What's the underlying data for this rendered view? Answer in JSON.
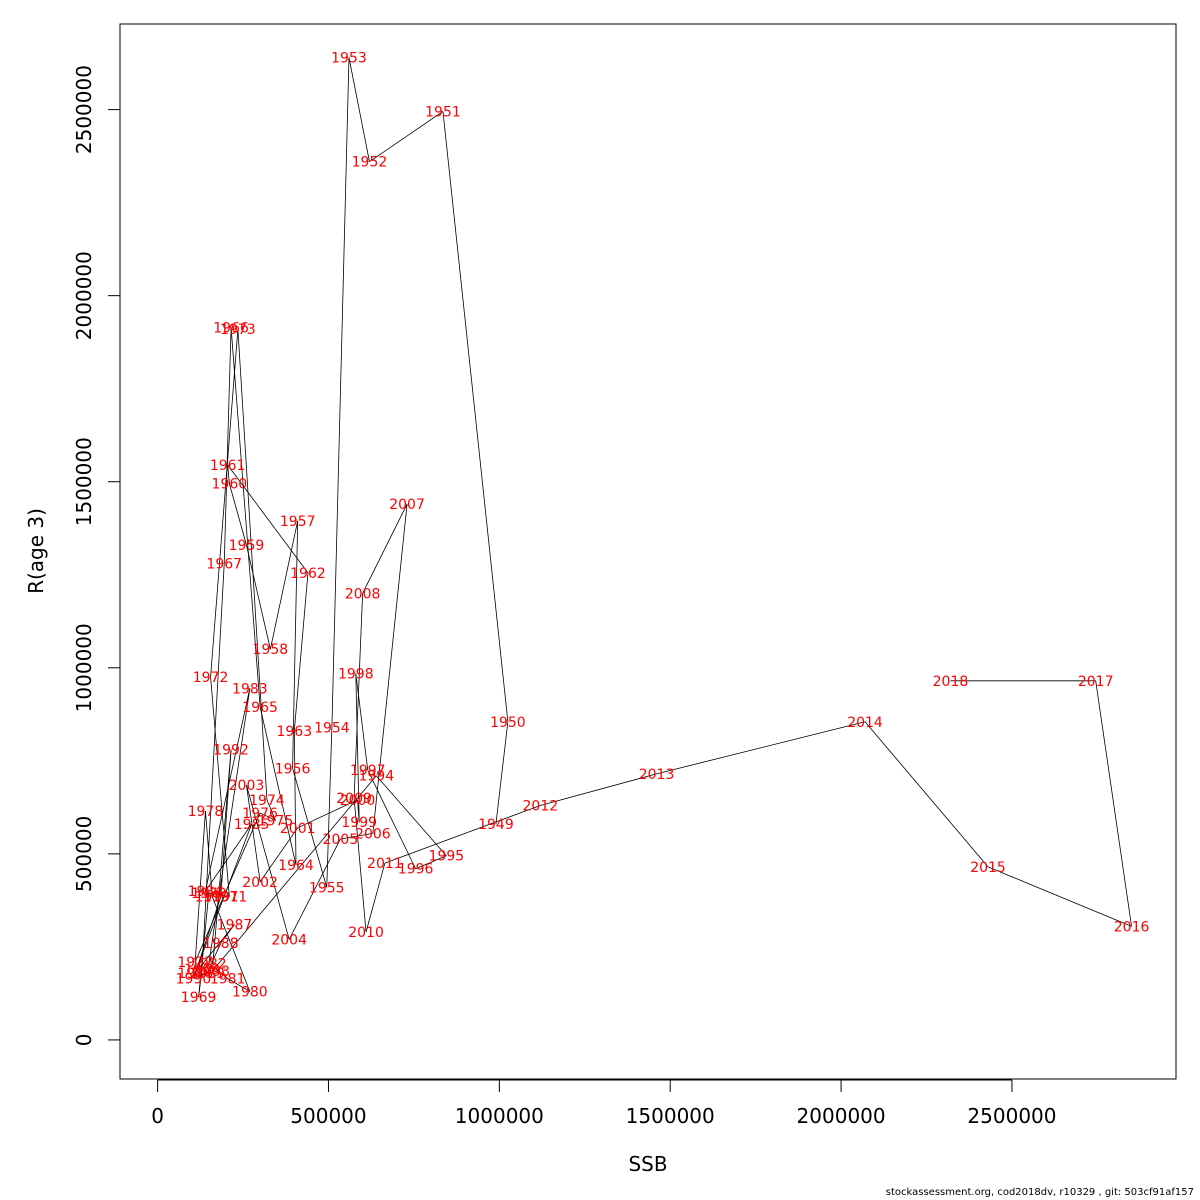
{
  "footer": "stockassessment.org, cod2018dv, r10329 , git: 503cf91af157",
  "chart_data": {
    "type": "line",
    "title": "",
    "xlabel": "SSB",
    "ylabel": "R(age 3)",
    "xlim": [
      -110000,
      2980000
    ],
    "ylim": [
      -105000,
      2730000
    ],
    "x_ticks": [
      0,
      500000,
      1000000,
      1500000,
      2000000,
      2500000
    ],
    "y_ticks": [
      0,
      500000,
      1000000,
      1500000,
      2000000,
      2500000
    ],
    "grid": false,
    "line_color": "#000000",
    "label_color": "#ff0000",
    "points": [
      {
        "year": "1949",
        "x": 990000,
        "y": 580000
      },
      {
        "year": "1950",
        "x": 1025000,
        "y": 855000
      },
      {
        "year": "1951",
        "x": 835000,
        "y": 2495000
      },
      {
        "year": "1952",
        "x": 620000,
        "y": 2360000
      },
      {
        "year": "1953",
        "x": 560000,
        "y": 2640000
      },
      {
        "year": "1954",
        "x": 510000,
        "y": 840000
      },
      {
        "year": "1955",
        "x": 495000,
        "y": 410000
      },
      {
        "year": "1956",
        "x": 395000,
        "y": 730000
      },
      {
        "year": "1957",
        "x": 410000,
        "y": 1395000
      },
      {
        "year": "1958",
        "x": 330000,
        "y": 1050000
      },
      {
        "year": "1959",
        "x": 260000,
        "y": 1330000
      },
      {
        "year": "1960",
        "x": 210000,
        "y": 1495000
      },
      {
        "year": "1961",
        "x": 205000,
        "y": 1545000
      },
      {
        "year": "1962",
        "x": 440000,
        "y": 1255000
      },
      {
        "year": "1963",
        "x": 400000,
        "y": 830000
      },
      {
        "year": "1964",
        "x": 405000,
        "y": 470000
      },
      {
        "year": "1965",
        "x": 300000,
        "y": 895000
      },
      {
        "year": "1966",
        "x": 215000,
        "y": 1915000
      },
      {
        "year": "1967",
        "x": 195000,
        "y": 1280000
      },
      {
        "year": "1968",
        "x": 130000,
        "y": 190000
      },
      {
        "year": "1969",
        "x": 120000,
        "y": 115000
      },
      {
        "year": "1970",
        "x": 150000,
        "y": 395000
      },
      {
        "year": "1971",
        "x": 210000,
        "y": 385000
      },
      {
        "year": "1972",
        "x": 155000,
        "y": 975000
      },
      {
        "year": "1973",
        "x": 235000,
        "y": 1910000
      },
      {
        "year": "1974",
        "x": 320000,
        "y": 645000
      },
      {
        "year": "1975",
        "x": 345000,
        "y": 590000
      },
      {
        "year": "1976",
        "x": 300000,
        "y": 610000
      },
      {
        "year": "1977",
        "x": 110000,
        "y": 210000
      },
      {
        "year": "1978",
        "x": 140000,
        "y": 615000
      },
      {
        "year": "1979",
        "x": 160000,
        "y": 385000
      },
      {
        "year": "1980",
        "x": 270000,
        "y": 130000
      },
      {
        "year": "1981",
        "x": 205000,
        "y": 165000
      },
      {
        "year": "1982",
        "x": 150000,
        "y": 205000
      },
      {
        "year": "1983",
        "x": 270000,
        "y": 945000
      },
      {
        "year": "1984",
        "x": 140000,
        "y": 400000
      },
      {
        "year": "1985",
        "x": 275000,
        "y": 580000
      },
      {
        "year": "1986",
        "x": 110000,
        "y": 180000
      },
      {
        "year": "1987",
        "x": 225000,
        "y": 310000
      },
      {
        "year": "1988",
        "x": 185000,
        "y": 260000
      },
      {
        "year": "1989",
        "x": 145000,
        "y": 180000
      },
      {
        "year": "1990",
        "x": 105000,
        "y": 165000
      },
      {
        "year": "1991",
        "x": 185000,
        "y": 385000
      },
      {
        "year": "1992",
        "x": 215000,
        "y": 780000
      },
      {
        "year": "1993",
        "x": 160000,
        "y": 185000
      },
      {
        "year": "1994",
        "x": 640000,
        "y": 710000
      },
      {
        "year": "1995",
        "x": 845000,
        "y": 495000
      },
      {
        "year": "1996",
        "x": 755000,
        "y": 460000
      },
      {
        "year": "1997",
        "x": 615000,
        "y": 725000
      },
      {
        "year": "1998",
        "x": 580000,
        "y": 985000
      },
      {
        "year": "1999",
        "x": 590000,
        "y": 585000
      },
      {
        "year": "2000",
        "x": 585000,
        "y": 645000
      },
      {
        "year": "2001",
        "x": 410000,
        "y": 570000
      },
      {
        "year": "2002",
        "x": 300000,
        "y": 425000
      },
      {
        "year": "2003",
        "x": 260000,
        "y": 685000
      },
      {
        "year": "2004",
        "x": 385000,
        "y": 270000
      },
      {
        "year": "2005",
        "x": 535000,
        "y": 540000
      },
      {
        "year": "2006",
        "x": 630000,
        "y": 555000
      },
      {
        "year": "2007",
        "x": 730000,
        "y": 1440000
      },
      {
        "year": "2008",
        "x": 600000,
        "y": 1200000
      },
      {
        "year": "2009",
        "x": 575000,
        "y": 650000
      },
      {
        "year": "2010",
        "x": 610000,
        "y": 290000
      },
      {
        "year": "2011",
        "x": 665000,
        "y": 475000
      },
      {
        "year": "2012",
        "x": 1120000,
        "y": 630000
      },
      {
        "year": "2013",
        "x": 1460000,
        "y": 715000
      },
      {
        "year": "2014",
        "x": 2070000,
        "y": 855000
      },
      {
        "year": "2015",
        "x": 2430000,
        "y": 465000
      },
      {
        "year": "2016",
        "x": 2850000,
        "y": 305000
      },
      {
        "year": "2017",
        "x": 2745000,
        "y": 965000
      },
      {
        "year": "2018",
        "x": 2320000,
        "y": 965000
      }
    ]
  }
}
